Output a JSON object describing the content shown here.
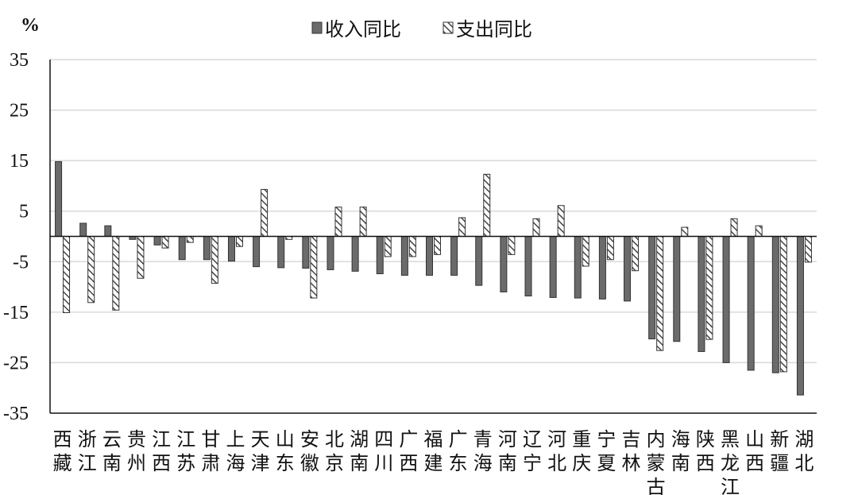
{
  "chart_data": {
    "type": "bar",
    "y_unit": "%",
    "ylim": [
      -35,
      35
    ],
    "yticks": [
      35,
      25,
      15,
      5,
      -5,
      -15,
      -25,
      -35
    ],
    "grid": true,
    "legend_position": "top-center",
    "categories": [
      [
        "西",
        "藏"
      ],
      [
        "浙",
        "江"
      ],
      [
        "云",
        "南"
      ],
      [
        "贵",
        "州"
      ],
      [
        "江",
        "西"
      ],
      [
        "江",
        "苏"
      ],
      [
        "甘",
        "肃"
      ],
      [
        "上",
        "海"
      ],
      [
        "天",
        "津"
      ],
      [
        "山",
        "东"
      ],
      [
        "安",
        "徽"
      ],
      [
        "北",
        "京"
      ],
      [
        "湖",
        "南"
      ],
      [
        "四",
        "川"
      ],
      [
        "广",
        "西"
      ],
      [
        "福",
        "建"
      ],
      [
        "广",
        "东"
      ],
      [
        "青",
        "海"
      ],
      [
        "河",
        "南"
      ],
      [
        "辽",
        "宁"
      ],
      [
        "河",
        "北"
      ],
      [
        "重",
        "庆"
      ],
      [
        "宁",
        "夏"
      ],
      [
        "吉",
        "林"
      ],
      [
        "内",
        "蒙",
        "古"
      ],
      [
        "海",
        "南"
      ],
      [
        "陕",
        "西"
      ],
      [
        "黑",
        "龙",
        "江"
      ],
      [
        "山",
        "西"
      ],
      [
        "新",
        "疆"
      ],
      [
        "湖",
        "北"
      ]
    ],
    "series": [
      {
        "name": "收入同比",
        "color": "#6b6b6b",
        "pattern": "solid",
        "values": [
          14.8,
          2.6,
          2.1,
          -0.6,
          -1.7,
          -4.6,
          -4.6,
          -4.9,
          -6.0,
          -6.2,
          -6.3,
          -6.6,
          -6.9,
          -7.4,
          -7.7,
          -7.7,
          -7.7,
          -9.7,
          -11.0,
          -11.8,
          -12.1,
          -12.2,
          -12.4,
          -12.8,
          -20.3,
          -20.8,
          -22.8,
          -25.0,
          -26.5,
          -27.0,
          -31.4
        ]
      },
      {
        "name": "支出同比",
        "color": "#444444",
        "pattern": "hatched",
        "values": [
          -15.1,
          -13.1,
          -14.6,
          -8.3,
          -2.3,
          -1.2,
          -9.3,
          -2.0,
          9.3,
          -0.6,
          -12.2,
          5.8,
          5.8,
          -4.0,
          -4.0,
          -3.6,
          3.7,
          12.3,
          -3.6,
          3.5,
          6.1,
          -5.9,
          -4.6,
          -6.8,
          -22.6,
          1.8,
          -20.4,
          3.5,
          2.1,
          -26.8,
          -5.1
        ]
      }
    ]
  }
}
